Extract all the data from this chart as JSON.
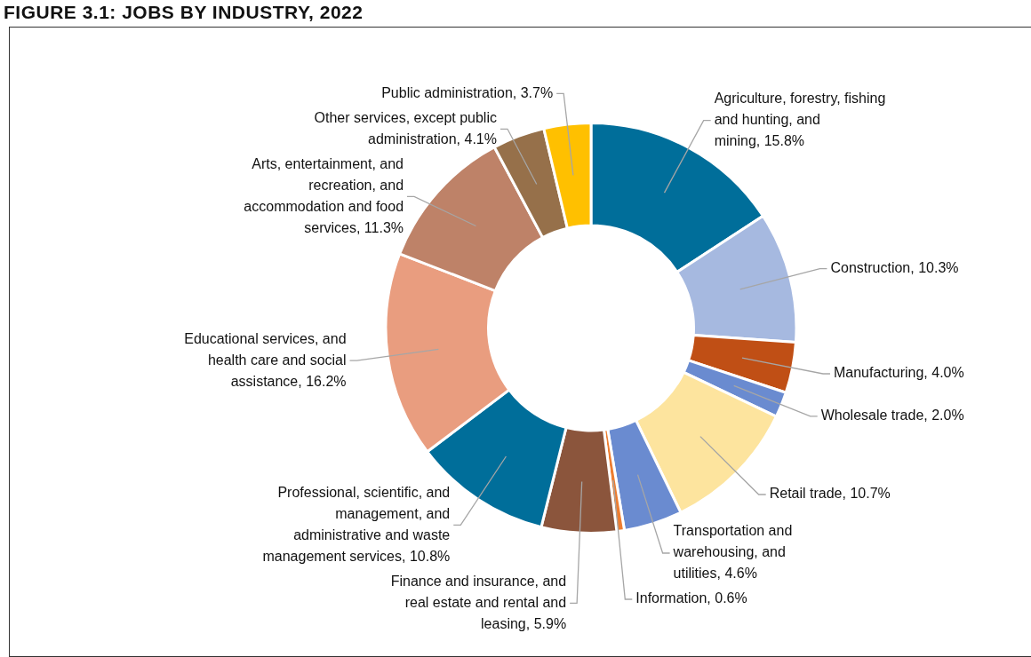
{
  "chart_data": {
    "type": "donut",
    "title": "FIGURE 3.1: JOBS BY INDUSTRY, 2022",
    "categories": [
      "Agriculture, forestry, fishing and hunting, and mining",
      "Construction",
      "Manufacturing",
      "Wholesale trade",
      "Retail trade",
      "Transportation and warehousing, and utilities",
      "Information",
      "Finance and insurance, and real estate and rental and leasing",
      "Professional, scientific, and management, and administrative and waste management services",
      "Educational services, and health care and social assistance",
      "Arts, entertainment, and recreation, and accommodation and food services",
      "Other services, except public administration",
      "Public administration"
    ],
    "values": [
      15.8,
      10.3,
      4.0,
      2.0,
      10.7,
      4.6,
      0.6,
      5.9,
      10.8,
      16.2,
      11.3,
      4.1,
      3.7
    ],
    "value_labels": [
      "15.8%",
      "10.3%",
      "4.0%",
      "2.0%",
      "10.7%",
      "4.6%",
      "0.6%",
      "5.9%",
      "10.8%",
      "16.2%",
      "11.3%",
      "4.1%",
      "3.7%"
    ],
    "colors": [
      "#006e9a",
      "#a6b9e0",
      "#c04f15",
      "#6a8bd0",
      "#fde49e",
      "#6a8bd0",
      "#ed7d31",
      "#8b553c",
      "#006e9a",
      "#e99d7f",
      "#be8268",
      "#96704a",
      "#ffc000"
    ],
    "legend": false
  }
}
